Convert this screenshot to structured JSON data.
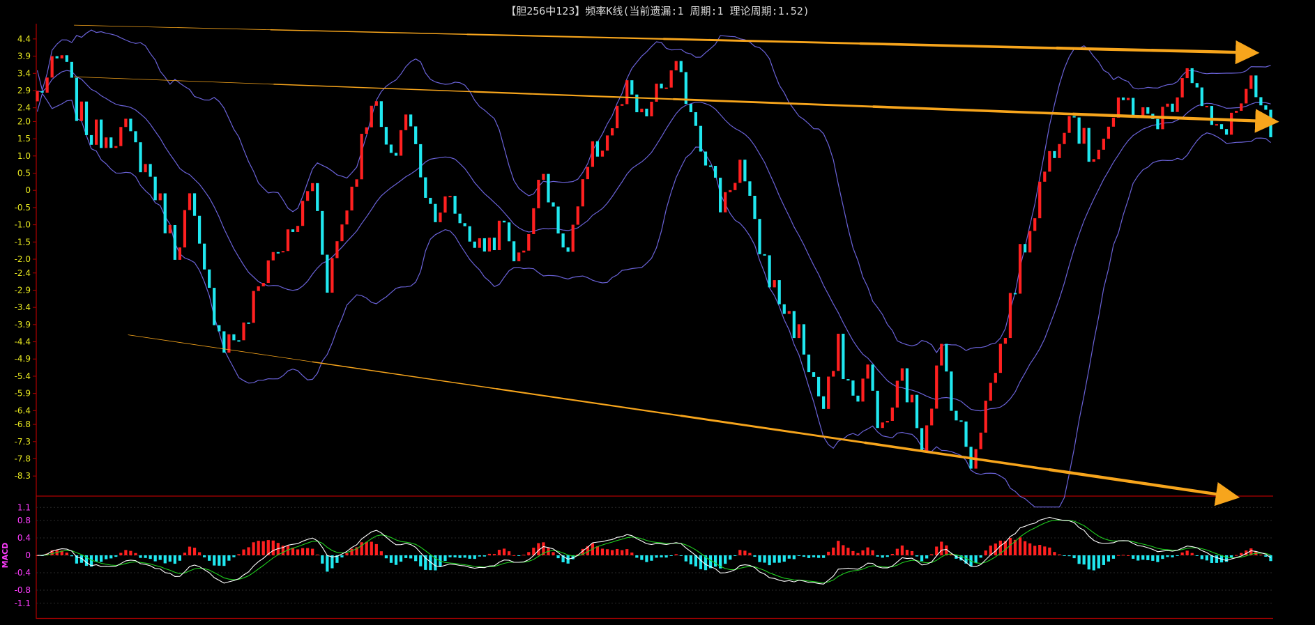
{
  "title": "【胆256中123】频率K线(当前遗漏:1 周期:1 理论周期:1.52)",
  "colors": {
    "background": "#000000",
    "axis": "#b00000",
    "up_candle": "#ff2020",
    "down_candle": "#20e8f0",
    "band": "#6a62d8",
    "trend_arrow": "#f7a51c",
    "macd_dif": "#ffffff",
    "macd_dea": "#1fd01f",
    "macd_pos": "#ff2020",
    "macd_neg": "#20e8f0",
    "tick_main": "#e8e820",
    "tick_macd": "#ff3cff"
  },
  "chart_data": [
    {
      "type": "candlestick",
      "ylim": [
        -8.6,
        4.6
      ],
      "y_ticks": [
        "4.4",
        "3.9",
        "3.4",
        "2.9",
        "2.4",
        "2.0",
        "1.5",
        "1.0",
        "0.5",
        "0",
        "-0.5",
        "-1.0",
        "-1.5",
        "-2.0",
        "-2.4",
        "-2.9",
        "-3.4",
        "-3.9",
        "-4.4",
        "-4.9",
        "-5.4",
        "-5.9",
        "-6.4",
        "-6.8",
        "-7.3",
        "-7.8",
        "-8.3"
      ],
      "close_series_keypoints": [
        [
          0,
          2.8
        ],
        [
          5,
          3.9
        ],
        [
          8,
          2.4
        ],
        [
          11,
          1.6
        ],
        [
          18,
          1.7
        ],
        [
          23,
          0.4
        ],
        [
          28,
          -1.7
        ],
        [
          31,
          -0.3
        ],
        [
          34,
          -2.6
        ],
        [
          38,
          -4.4
        ],
        [
          42,
          -4.1
        ],
        [
          47,
          -2.0
        ],
        [
          52,
          -1.3
        ],
        [
          56,
          0.3
        ],
        [
          59,
          -2.6
        ],
        [
          65,
          0.7
        ],
        [
          68,
          2.8
        ],
        [
          72,
          0.7
        ],
        [
          75,
          2.3
        ],
        [
          80,
          -0.5
        ],
        [
          84,
          -0.4
        ],
        [
          90,
          -1.7
        ],
        [
          95,
          -1.1
        ],
        [
          98,
          -2.1
        ],
        [
          103,
          0.6
        ],
        [
          106,
          -0.9
        ],
        [
          107,
          -2.1
        ],
        [
          113,
          1.0
        ],
        [
          116,
          1.6
        ],
        [
          120,
          2.8
        ],
        [
          123,
          2.0
        ],
        [
          127,
          3.0
        ],
        [
          130,
          3.4
        ],
        [
          133,
          2.5
        ],
        [
          139,
          -0.4
        ],
        [
          143,
          0.8
        ],
        [
          146,
          -1.2
        ],
        [
          150,
          -2.9
        ],
        [
          155,
          -4.2
        ],
        [
          160,
          -6.4
        ],
        [
          163,
          -4.6
        ],
        [
          166,
          -6.1
        ],
        [
          169,
          -5.3
        ],
        [
          172,
          -7.1
        ],
        [
          176,
          -5.4
        ],
        [
          180,
          -7.2
        ],
        [
          184,
          -4.7
        ],
        [
          187,
          -6.6
        ],
        [
          190,
          -7.8
        ],
        [
          193,
          -6.2
        ],
        [
          196,
          -4.6
        ],
        [
          200,
          -2.0
        ],
        [
          205,
          0.6
        ],
        [
          210,
          2.5
        ],
        [
          214,
          1.0
        ],
        [
          219,
          2.1
        ],
        [
          222,
          2.6
        ],
        [
          226,
          2.0
        ],
        [
          230,
          2.3
        ],
        [
          234,
          3.8
        ],
        [
          237,
          2.4
        ],
        [
          240,
          1.6
        ],
        [
          244,
          2.3
        ],
        [
          247,
          2.9
        ],
        [
          249,
          2.3
        ],
        [
          251,
          1.7
        ]
      ],
      "bars_count": 252,
      "bands": [
        "upper band",
        "middle band",
        "lower band"
      ],
      "trend_arrows": [
        {
          "from": [
            8,
            4.8
          ],
          "to": [
            248,
            4.0
          ]
        },
        {
          "from": [
            8,
            3.3
          ],
          "to": [
            252,
            2.0
          ]
        },
        {
          "from": [
            19,
            -4.2
          ],
          "to": [
            244,
            -8.9
          ]
        }
      ]
    },
    {
      "type": "macd",
      "label": "MACD",
      "ylim": [
        -1.2,
        1.2
      ],
      "y_ticks": [
        "1.1",
        "0.8",
        "0.4",
        "0",
        "-0.4",
        "-0.8",
        "-1.1"
      ]
    }
  ]
}
